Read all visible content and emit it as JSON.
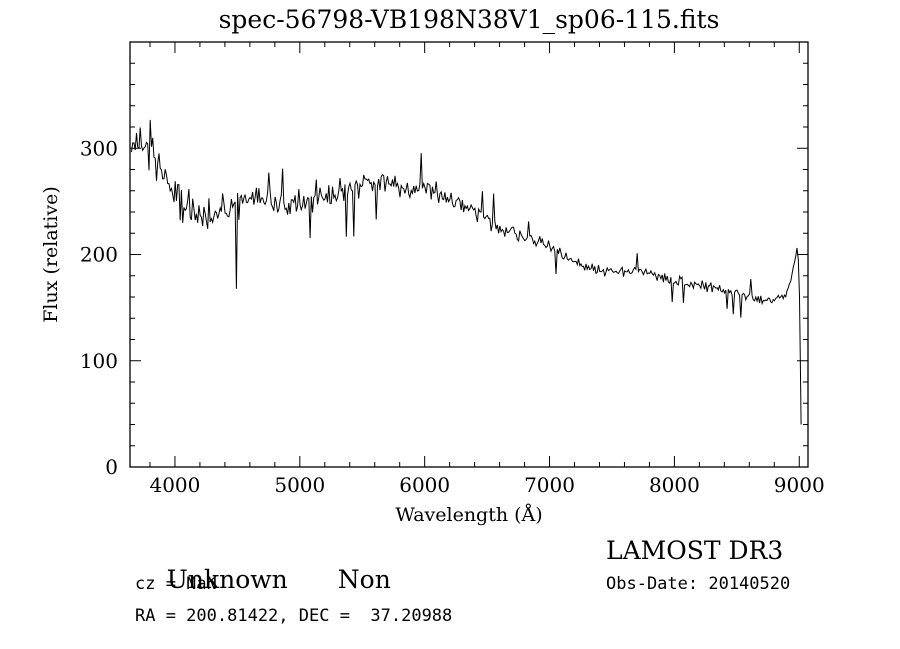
{
  "chart_data": {
    "type": "line",
    "title": "spec-56798-VB198N38V1_sp06-115.fits",
    "xlabel": "Wavelength (Å)",
    "ylabel": "Flux (relative)",
    "xlim": [
      3640,
      9070
    ],
    "ylim": [
      0,
      400
    ],
    "x_ticks": [
      4000,
      5000,
      6000,
      7000,
      8000,
      9000
    ],
    "y_ticks": [
      0,
      100,
      200,
      300
    ],
    "x_minor_step": 200,
    "y_minor_step": 20,
    "grid": false,
    "legend": "none",
    "line_color": "#000000",
    "x_start": 3652,
    "x_end": 9015,
    "sample_step": 10,
    "seed": 20140520,
    "continuum": [
      [
        3652,
        300
      ],
      [
        3700,
        310
      ],
      [
        3750,
        300
      ],
      [
        3800,
        295
      ],
      [
        3850,
        285
      ],
      [
        3900,
        270
      ],
      [
        3950,
        262
      ],
      [
        4000,
        258
      ],
      [
        4050,
        250
      ],
      [
        4100,
        245
      ],
      [
        4200,
        240
      ],
      [
        4300,
        238
      ],
      [
        4400,
        245
      ],
      [
        4500,
        250
      ],
      [
        4600,
        252
      ],
      [
        4700,
        250
      ],
      [
        4800,
        248
      ],
      [
        4900,
        247
      ],
      [
        5000,
        248
      ],
      [
        5100,
        250
      ],
      [
        5200,
        252
      ],
      [
        5300,
        257
      ],
      [
        5400,
        262
      ],
      [
        5500,
        267
      ],
      [
        5600,
        270
      ],
      [
        5700,
        268
      ],
      [
        5800,
        263
      ],
      [
        5900,
        260
      ],
      [
        6000,
        262
      ],
      [
        6100,
        258
      ],
      [
        6200,
        252
      ],
      [
        6300,
        247
      ],
      [
        6400,
        240
      ],
      [
        6500,
        232
      ],
      [
        6600,
        226
      ],
      [
        6700,
        221
      ],
      [
        6800,
        217
      ],
      [
        6900,
        212
      ],
      [
        7000,
        207
      ],
      [
        7100,
        200
      ],
      [
        7200,
        193
      ],
      [
        7300,
        188
      ],
      [
        7400,
        185
      ],
      [
        7500,
        183
      ],
      [
        7600,
        184
      ],
      [
        7700,
        185
      ],
      [
        7800,
        182
      ],
      [
        7900,
        178
      ],
      [
        8000,
        175
      ],
      [
        8100,
        173
      ],
      [
        8200,
        171
      ],
      [
        8300,
        169
      ],
      [
        8400,
        166
      ],
      [
        8500,
        163
      ],
      [
        8600,
        160
      ],
      [
        8700,
        158
      ],
      [
        8800,
        156
      ],
      [
        8900,
        162
      ],
      [
        8950,
        185
      ],
      [
        8985,
        208
      ],
      [
        9000,
        180
      ],
      [
        9008,
        100
      ],
      [
        9015,
        40
      ]
    ],
    "noise_segments": [
      [
        3652,
        42
      ],
      [
        3800,
        38
      ],
      [
        4000,
        30
      ],
      [
        4200,
        26
      ],
      [
        4400,
        22
      ],
      [
        4700,
        18
      ],
      [
        5000,
        16
      ],
      [
        5300,
        16
      ],
      [
        5600,
        16
      ],
      [
        6000,
        13
      ],
      [
        6400,
        11
      ],
      [
        6800,
        9
      ],
      [
        7200,
        8
      ],
      [
        7600,
        8
      ],
      [
        8000,
        7
      ],
      [
        8400,
        7
      ],
      [
        8800,
        7
      ],
      [
        9015,
        4
      ]
    ]
  },
  "annotations": {
    "class": "Unknown",
    "subclass": "Non",
    "cz_line": "cz = NaN",
    "ra_dec_line": "RA = 200.81422, DEC =  37.20988",
    "survey": "LAMOST DR3",
    "obs_date_line": "Obs-Date: 20140520"
  }
}
